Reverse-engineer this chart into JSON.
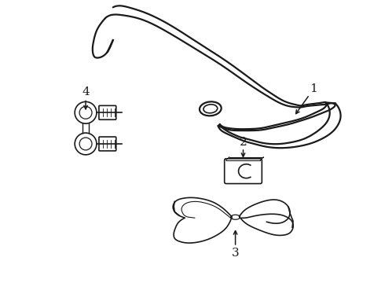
{
  "background_color": "#ffffff",
  "line_color": "#1a1a1a",
  "figsize": [
    4.9,
    3.6
  ],
  "dpi": 100,
  "label_fontsize": 10
}
